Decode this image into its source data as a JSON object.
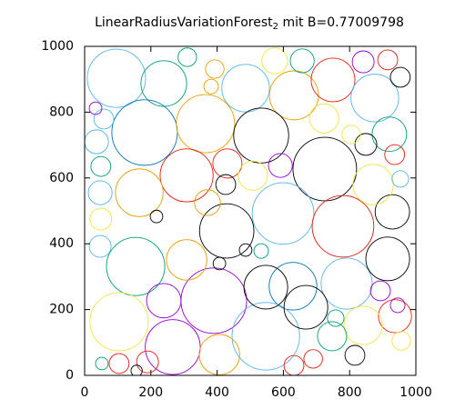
{
  "chart_data": {
    "type": "circles",
    "title": "LinearRadiusVariationForest",
    "title_subscript": "2",
    "title_suffix": " mit B=0.77009798",
    "xlim": [
      0,
      1000
    ],
    "ylim": [
      0,
      1000
    ],
    "xticks": [
      0,
      200,
      400,
      600,
      800,
      1000
    ],
    "yticks": [
      0,
      200,
      400,
      600,
      800,
      1000
    ],
    "x": [
      96,
      239,
      486,
      632,
      750,
      876,
      181,
      365,
      533,
      725,
      308,
      165,
      599,
      780,
      429,
      154,
      390,
      791,
      629,
      104,
      547,
      266,
      308,
      915,
      547,
      668,
      407,
      937,
      841,
      920,
      929,
      871,
      239,
      723,
      747,
      431,
      574,
      657,
      841,
      915,
      953,
      310,
      58,
      36,
      49,
      47,
      49,
      47,
      849,
      936,
      953,
      426,
      371,
      591,
      508,
      690,
      632,
      816,
      956,
      104,
      52,
      190,
      157,
      945,
      893,
      758,
      393,
      805,
      486,
      533,
      407,
      33,
      217,
      382
    ],
    "y": [
      903,
      887,
      873,
      851,
      898,
      843,
      738,
      765,
      729,
      627,
      608,
      555,
      492,
      453,
      439,
      331,
      227,
      279,
      271,
      163,
      119,
      86,
      351,
      354,
      268,
      207,
      63,
      180,
      152,
      733,
      497,
      580,
      227,
      781,
      119,
      644,
      956,
      956,
      953,
      959,
      906,
      967,
      779,
      710,
      635,
      555,
      475,
      392,
      702,
      671,
      597,
      580,
      525,
      638,
      607,
      50,
      30,
      61,
      105,
      36,
      36,
      41,
      14,
      213,
      257,
      174,
      931,
      732,
      381,
      378,
      340,
      812,
      483,
      878
    ],
    "sizes": [
      88,
      69,
      72,
      74,
      66,
      72,
      99,
      88,
      83,
      96,
      80,
      72,
      93,
      93,
      82,
      88,
      99,
      77,
      72,
      88,
      102,
      83,
      61,
      66,
      66,
      66,
      61,
      50,
      58,
      52,
      52,
      61,
      52,
      44,
      44,
      44,
      39,
      36,
      33,
      30,
      30,
      28,
      30,
      36,
      30,
      36,
      33,
      33,
      33,
      30,
      25,
      30,
      39,
      36,
      44,
      28,
      30,
      30,
      28,
      30,
      19,
      33,
      17,
      22,
      30,
      25,
      28,
      28,
      19,
      22,
      19,
      19,
      19,
      22
    ],
    "colors": [
      "#56b4e9",
      "#009e73",
      "#56b4e9",
      "#e69f00",
      "#e51e10",
      "#56b4e9",
      "#0072b2",
      "#e69f00",
      "#000000",
      "#000000",
      "#e51e10",
      "#e69f00",
      "#56b4e9",
      "#e51e10",
      "#000000",
      "#009e73",
      "#9400d3",
      "#56b4e9",
      "#0072b2",
      "#f0e442",
      "#56b4e9",
      "#9400d3",
      "#e69f00",
      "#000000",
      "#000000",
      "#000000",
      "#e69f00",
      "#e51e10",
      "#f0e442",
      "#009e73",
      "#000000",
      "#f0e442",
      "#9400d3",
      "#f0e442",
      "#009e73",
      "#e51e10",
      "#f0e442",
      "#009e73",
      "#9400d3",
      "#e51e10",
      "#000000",
      "#009e73",
      "#56b4e9",
      "#56b4e9",
      "#009e73",
      "#56b4e9",
      "#f0e442",
      "#56b4e9",
      "#000000",
      "#e51e10",
      "#56b4e9",
      "#000000",
      "#e69f00",
      "#9400d3",
      "#f0e442",
      "#e51e10",
      "#e51e10",
      "#000000",
      "#f0e442",
      "#e51e10",
      "#009e73",
      "#e51e10",
      "#000000",
      "#9400d3",
      "#9400d3",
      "#009e73",
      "#e69f00",
      "#f0e442",
      "#000000",
      "#009e73",
      "#000000",
      "#9400d3",
      "#000000",
      "#e69f00"
    ]
  }
}
